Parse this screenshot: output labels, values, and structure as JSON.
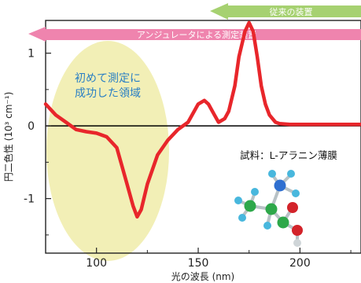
{
  "chart_data": {
    "type": "line",
    "xlabel": "光の波長 (nm)",
    "ylabel": "円二色性 (10³ cm⁻¹)",
    "x_ticks": [
      100,
      150,
      200
    ],
    "y_ticks": [
      -1,
      0,
      1
    ],
    "xlim": [
      75,
      230
    ],
    "ylim": [
      -1.75,
      1.45
    ],
    "grid": false,
    "series": [
      {
        "color": "#e8262b",
        "x": [
          75,
          80,
          85,
          90,
          95,
          100,
          105,
          110,
          112,
          115,
          118,
          120,
          122,
          125,
          130,
          135,
          140,
          145,
          150,
          153,
          155,
          158,
          160,
          163,
          165,
          168,
          170,
          173,
          175,
          177,
          179,
          181,
          183,
          185,
          188,
          190,
          195,
          200,
          205,
          210,
          215,
          220,
          225,
          230
        ],
        "y": [
          0.3,
          0.15,
          0.05,
          -0.05,
          -0.08,
          -0.1,
          -0.15,
          -0.3,
          -0.5,
          -0.8,
          -1.1,
          -1.25,
          -1.15,
          -0.8,
          -0.4,
          -0.2,
          -0.05,
          0.05,
          0.3,
          0.35,
          0.3,
          0.15,
          0.05,
          0.1,
          0.2,
          0.55,
          0.95,
          1.3,
          1.42,
          1.3,
          0.95,
          0.55,
          0.3,
          0.15,
          0.05,
          0.03,
          0.02,
          0.02,
          0.02,
          0.02,
          0.02,
          0.02,
          0.02,
          0.02
        ]
      }
    ],
    "annotations": {
      "region_label": [
        "初めて測定に",
        "成功した領域"
      ],
      "sample_label": "試料：L-アラニン薄膜",
      "arrow_conventional": "従来の装置",
      "arrow_undulator": "アンジュレータによる測定装置"
    },
    "colors": {
      "region_fill": "#f2efb6",
      "arrow_pink": "#ef84ae",
      "arrow_green": "#a6d171",
      "region_text": "#2a7fc4",
      "line": "#e8262b"
    },
    "molecule": {
      "type": "ball-and-stick illustration",
      "atom_colors": [
        "#2ea84a",
        "#48b7dd",
        "#2f6fd0",
        "#d3232a",
        "#cfd5d8"
      ]
    }
  }
}
